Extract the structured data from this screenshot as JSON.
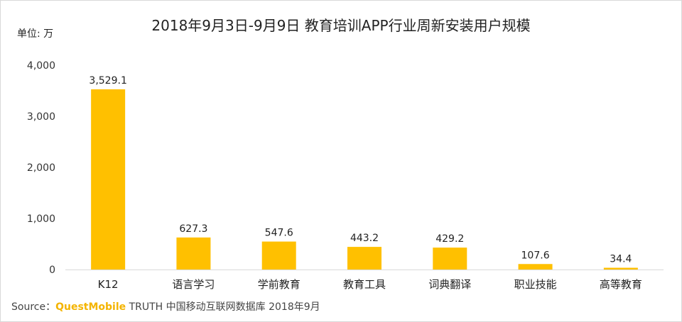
{
  "chart_data": {
    "type": "bar",
    "title": "2018年9月3日-9月9日 教育培训APP行业周新安装用户规模",
    "unit_label": "单位: 万",
    "categories": [
      "K12",
      "语言学习",
      "学前教育",
      "教育工具",
      "词典翻译",
      "职业技能",
      "高等教育"
    ],
    "values": [
      3529.1,
      627.3,
      547.6,
      443.2,
      429.2,
      107.6,
      34.4
    ],
    "value_labels": [
      "3,529.1",
      "627.3",
      "547.6",
      "443.2",
      "429.2",
      "107.6",
      "34.4"
    ],
    "ylim": [
      0,
      4000
    ],
    "yticks": [
      0,
      1000,
      2000,
      3000,
      4000
    ],
    "ytick_labels": [
      "0",
      "1,000",
      "2,000",
      "3,000",
      "4,000"
    ],
    "grid": false,
    "bar_color": "#ffc000"
  },
  "source": {
    "prefix": "Source：",
    "brand": "QuestMobile",
    "rest": " TRUTH 中国移动互联网数据库 2018年9月"
  },
  "colors": {
    "brand": "#f4b400",
    "axis": "#d9d9d9"
  }
}
